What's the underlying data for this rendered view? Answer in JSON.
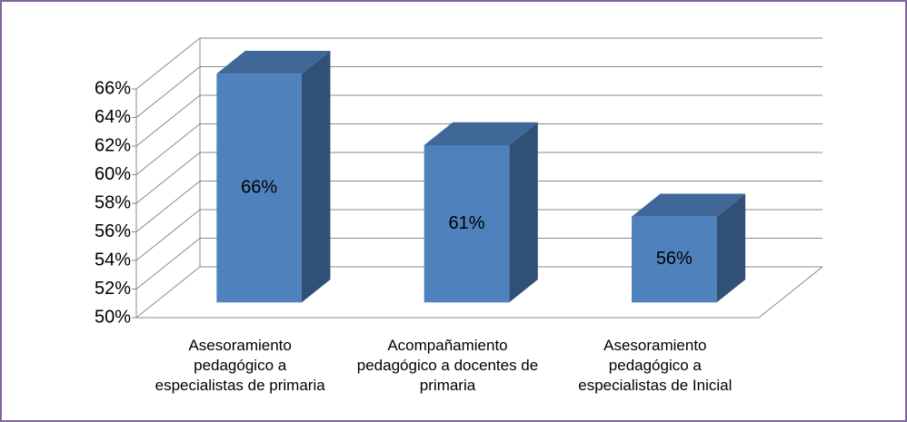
{
  "chart_data": {
    "type": "bar3d",
    "categories": [
      "Asesoramiento pedagógico a especialistas de primaria",
      "Acompañamiento pedagógico a docentes de primaria",
      "Asesoramiento pedagógico a especialistas de Inicial"
    ],
    "values": [
      66,
      61,
      56
    ],
    "value_labels": [
      "66%",
      "61%",
      "56%"
    ],
    "color": "#4f81bd",
    "ylim": [
      50,
      66
    ],
    "yticks": [
      {
        "value": 50,
        "label": "50%"
      },
      {
        "value": 52,
        "label": "52%"
      },
      {
        "value": 54,
        "label": "54%"
      },
      {
        "value": 56,
        "label": "56%"
      },
      {
        "value": 58,
        "label": "58%"
      },
      {
        "value": 60,
        "label": "60%"
      },
      {
        "value": 62,
        "label": "62%"
      },
      {
        "value": 64,
        "label": "64%"
      },
      {
        "value": 66,
        "label": "66%"
      }
    ],
    "grid": true
  }
}
